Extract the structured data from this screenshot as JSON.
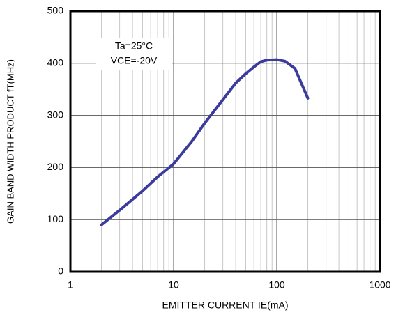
{
  "chart_data": {
    "type": "line",
    "x_label": "EMITTER CURRENT IE(mA)",
    "y_label": "GAIN BAND WIDTH PRODUCT fT(MHz)",
    "annotations": [
      "Ta=25°C",
      "VCE=-20V"
    ],
    "x": [
      2,
      3,
      5,
      7,
      10,
      15,
      20,
      30,
      40,
      50,
      60,
      70,
      80,
      100,
      120,
      150,
      200
    ],
    "series": [
      {
        "name": "fT",
        "color": "#3b3b9c",
        "values": [
          90,
          118,
          155,
          182,
          207,
          250,
          285,
          330,
          362,
          380,
          393,
          403,
          406,
          407,
          404,
          390,
          333
        ]
      }
    ],
    "xscale": "log",
    "xlim": [
      1,
      1000
    ],
    "xticks": [
      1,
      10,
      100,
      1000
    ],
    "xminor": [
      2,
      3,
      4,
      5,
      6,
      7,
      8,
      9,
      20,
      30,
      40,
      50,
      60,
      70,
      80,
      90,
      200,
      300,
      400,
      500,
      600,
      700,
      800,
      900
    ],
    "ylim": [
      0,
      500
    ],
    "yticks": [
      0,
      100,
      200,
      300,
      400,
      500
    ],
    "grid": true
  }
}
